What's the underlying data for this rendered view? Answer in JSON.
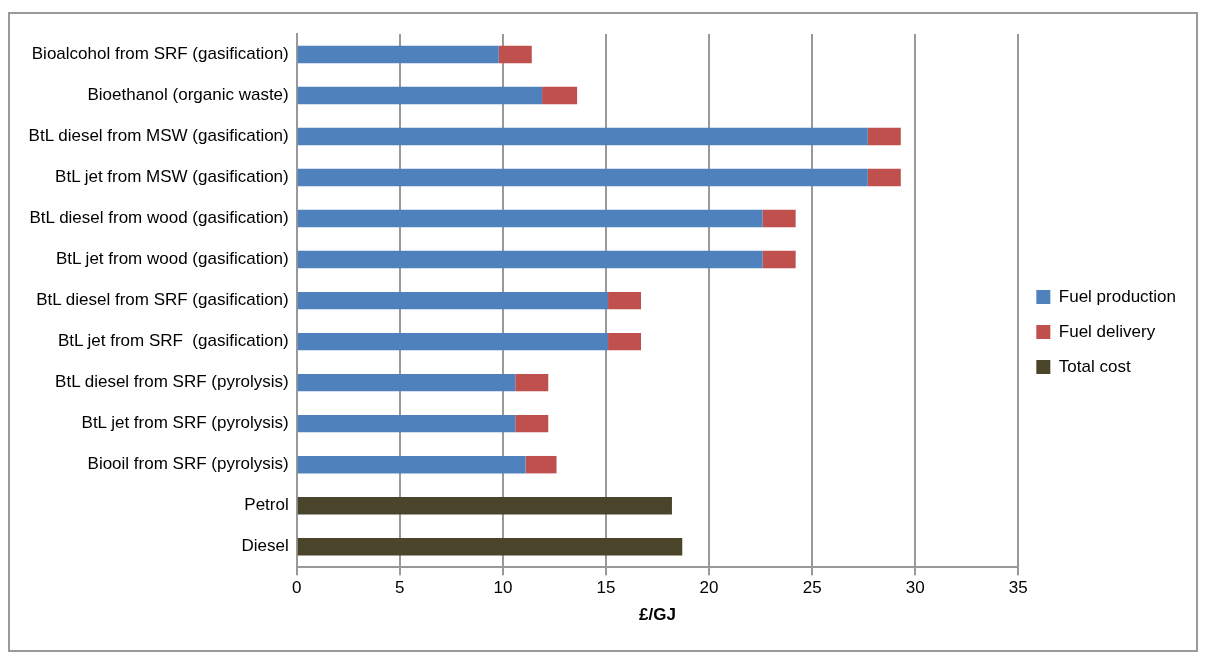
{
  "chart_data": {
    "type": "bar",
    "orientation": "horizontal",
    "stacked": true,
    "xlabel": "£/GJ",
    "categories": [
      "Bioalcohol from SRF (gasification)",
      "Bioethanol (organic waste)",
      "BtL diesel from MSW (gasification)",
      "BtL jet from MSW (gasification)",
      "BtL diesel from wood (gasification)",
      "BtL jet from wood (gasification)",
      "BtL diesel from SRF (gasification)",
      "BtL jet from SRF  (gasification)",
      "BtL diesel from SRF (pyrolysis)",
      "BtL jet from SRF (pyrolysis)",
      "Biooil from SRF (pyrolysis)",
      "Petrol",
      "Diesel"
    ],
    "series": [
      {
        "name": "Fuel production",
        "color": "#4f81bd",
        "values": [
          9.8,
          11.9,
          27.7,
          27.7,
          22.6,
          22.6,
          15.1,
          15.1,
          10.6,
          10.6,
          11.1,
          null,
          null
        ]
      },
      {
        "name": "Fuel delivery",
        "color": "#c0504d",
        "values": [
          1.6,
          1.7,
          1.6,
          1.6,
          1.6,
          1.6,
          1.6,
          1.6,
          1.6,
          1.6,
          1.5,
          null,
          null
        ]
      },
      {
        "name": "Total cost",
        "color": "#4a452a",
        "values": [
          null,
          null,
          null,
          null,
          null,
          null,
          null,
          null,
          null,
          null,
          null,
          18.2,
          18.7
        ]
      }
    ],
    "xlim": [
      0,
      35
    ],
    "xticks": [
      0,
      5,
      10,
      15,
      20,
      25,
      30,
      35
    ],
    "grid": "x",
    "legend": "right"
  }
}
